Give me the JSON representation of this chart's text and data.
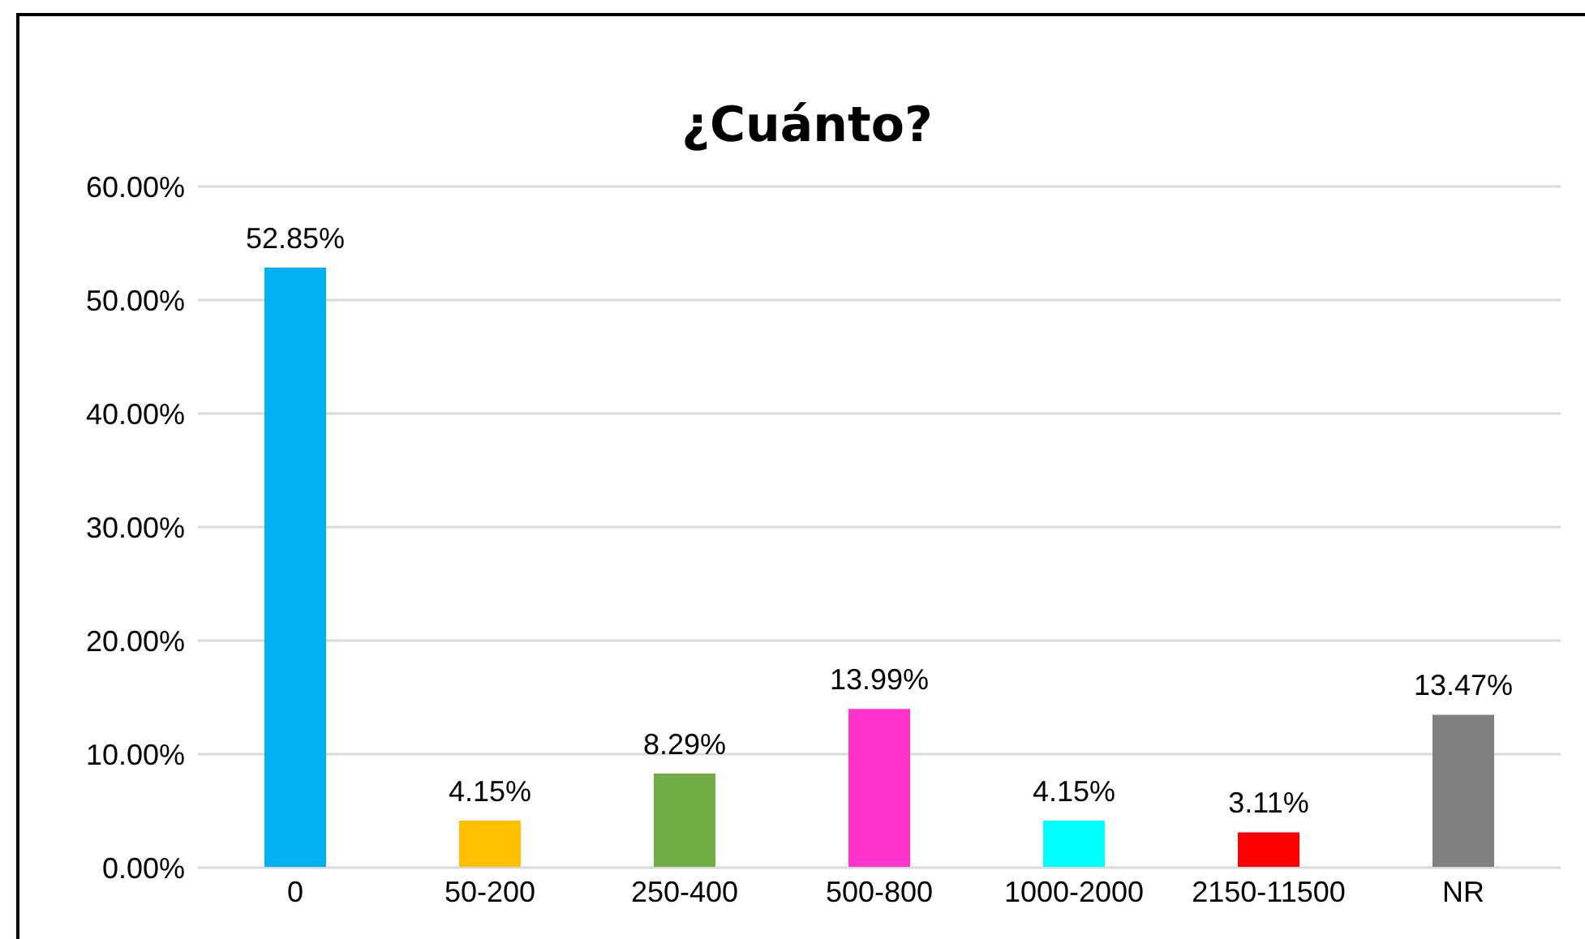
{
  "chart_data": {
    "type": "bar",
    "title": "¿Cuánto?",
    "categories": [
      "0",
      "50-200",
      "250-400",
      "500-800",
      "1000-2000",
      "2150-11500",
      "NR"
    ],
    "values": [
      52.85,
      4.15,
      8.29,
      13.99,
      4.15,
      3.11,
      13.47
    ],
    "colors": [
      "#00b0f0",
      "#ffc000",
      "#70ad47",
      "#ff33cc",
      "#00ffff",
      "#ff0000",
      "#808080"
    ],
    "value_labels": [
      "52.85%",
      "4.15%",
      "8.29%",
      "13.99%",
      "4.15%",
      "3.11%",
      "13.47%"
    ],
    "ylim": [
      0,
      60
    ],
    "yticks": [
      {
        "value": 0,
        "label": "0.00%"
      },
      {
        "value": 10,
        "label": "10.00%"
      },
      {
        "value": 20,
        "label": "20.00%"
      },
      {
        "value": 30,
        "label": "30.00%"
      },
      {
        "value": 40,
        "label": "40.00%"
      },
      {
        "value": 50,
        "label": "50.00%"
      },
      {
        "value": 60,
        "label": "60.00%"
      }
    ],
    "grid": "y",
    "legend": false
  }
}
